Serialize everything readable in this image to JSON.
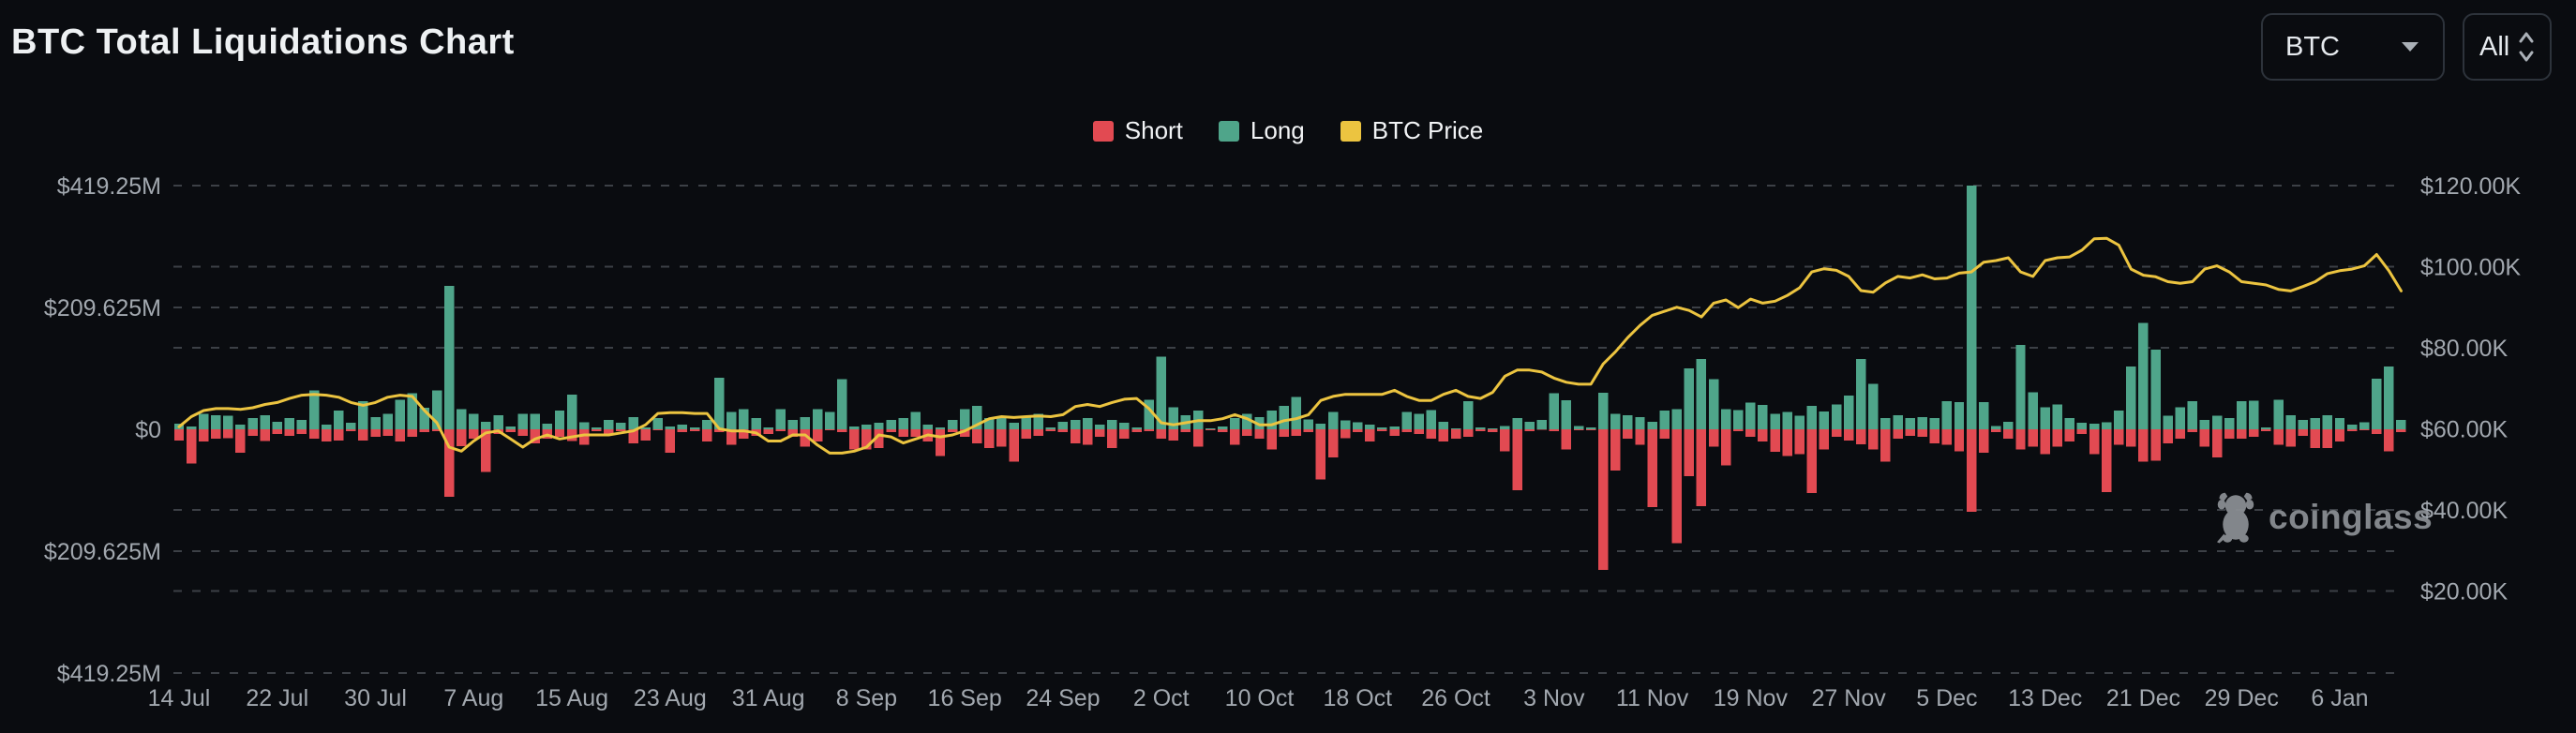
{
  "header": {
    "title": "BTC Total Liquidations Chart"
  },
  "controls": {
    "symbol_select": {
      "value": "BTC"
    },
    "range_select": {
      "value": "All"
    }
  },
  "legend": [
    {
      "label": "Short",
      "color": "#e24a52"
    },
    {
      "label": "Long",
      "color": "#4fa58a"
    },
    {
      "label": "BTC Price",
      "color": "#ecc440"
    }
  ],
  "watermark": {
    "text": "coinglass"
  },
  "colors": {
    "background": "#0a0c10",
    "short": "#e24a52",
    "long": "#4fa58a",
    "price": "#ecc440",
    "grid": "#3c4046",
    "axis_text": "#a2a8af",
    "title_text": "#eef1f3",
    "border": "#2d333b",
    "watermark": "#8d9196"
  },
  "chart_data": {
    "type": "bar+line",
    "title": "BTC Total Liquidations Chart",
    "grid": "dashed horizontal",
    "legend_position": "top-center",
    "start_date": "14 Jul",
    "x_tick_every_days": 8,
    "x_tick_labels": [
      "14 Jul",
      "22 Jul",
      "30 Jul",
      "7 Aug",
      "15 Aug",
      "23 Aug",
      "31 Aug",
      "8 Sep",
      "16 Sep",
      "24 Sep",
      "2 Oct",
      "10 Oct",
      "18 Oct",
      "26 Oct",
      "3 Nov",
      "11 Nov",
      "19 Nov",
      "27 Nov",
      "5 Dec",
      "13 Dec",
      "21 Dec",
      "29 Dec",
      "6 Jan"
    ],
    "left_axis": {
      "title": "Liquidations (USD)",
      "max_musd": 419.25,
      "tick_values_musd": [
        419.25,
        209.625,
        0,
        -209.625,
        -419.25
      ],
      "tick_labels": [
        "$419.25M",
        "$209.625M",
        "$0",
        "$209.625M",
        "$419.25M"
      ]
    },
    "right_axis": {
      "title": "BTC Price (USD)",
      "range_kusd": [
        0,
        120
      ],
      "tick_values_kusd": [
        120,
        100,
        80,
        60,
        40,
        20
      ],
      "tick_labels": [
        "$120.00K",
        "$100.00K",
        "$80.00K",
        "$60.00K",
        "$40.00K",
        "$20.00K"
      ]
    },
    "series": [
      {
        "name": "Long",
        "type": "bar",
        "direction": "up",
        "unit": "MUSD",
        "values_musd": [
          10,
          5,
          27,
          24,
          23,
          8,
          19,
          24,
          13,
          19,
          16,
          67,
          8,
          32,
          11,
          48,
          21,
          27,
          51,
          62,
          37,
          67,
          247,
          35,
          27,
          13,
          24,
          5,
          27,
          27,
          10,
          32,
          60,
          12,
          3,
          16,
          11,
          21,
          3,
          19,
          5,
          8,
          3,
          16,
          89,
          30,
          35,
          19,
          3,
          35,
          16,
          21,
          35,
          30,
          86,
          5,
          8,
          11,
          16,
          19,
          30,
          8,
          3,
          16,
          35,
          40,
          19,
          19,
          11,
          21,
          27,
          3,
          13,
          16,
          19,
          8,
          16,
          11,
          3,
          51,
          125,
          38,
          24,
          32,
          2,
          5,
          19,
          27,
          21,
          32,
          40,
          56,
          17,
          10,
          30,
          15,
          12,
          8,
          3,
          5,
          30,
          27,
          33,
          13,
          2,
          48,
          3,
          2,
          6,
          19,
          13,
          16,
          62,
          50,
          6,
          3,
          63,
          27,
          24,
          21,
          13,
          32,
          35,
          105,
          121,
          86,
          35,
          33,
          46,
          42,
          27,
          30,
          23,
          40,
          31,
          43,
          58,
          121,
          78,
          19,
          24,
          19,
          21,
          19,
          48,
          47,
          420,
          47,
          6,
          13,
          145,
          64,
          38,
          43,
          19,
          11,
          10,
          12,
          32,
          108,
          183,
          137,
          23,
          38,
          48,
          16,
          23,
          19,
          48,
          49,
          3,
          51,
          24,
          16,
          19,
          24,
          19,
          8,
          12,
          87,
          108,
          16
        ]
      },
      {
        "name": "Short",
        "type": "bar",
        "direction": "down",
        "unit": "MUSD",
        "values_musd": [
          19,
          59,
          21,
          16,
          15,
          40,
          11,
          20,
          8,
          11,
          8,
          16,
          21,
          19,
          3,
          19,
          13,
          11,
          21,
          13,
          5,
          3,
          116,
          29,
          16,
          73,
          8,
          5,
          11,
          24,
          16,
          13,
          20,
          27,
          3,
          8,
          3,
          24,
          19,
          2,
          40,
          5,
          3,
          21,
          5,
          27,
          16,
          11,
          8,
          3,
          13,
          30,
          21,
          2,
          5,
          35,
          35,
          32,
          5,
          13,
          13,
          21,
          46,
          5,
          13,
          24,
          32,
          30,
          56,
          16,
          11,
          3,
          5,
          24,
          27,
          13,
          32,
          16,
          5,
          3,
          16,
          19,
          5,
          30,
          2,
          5,
          27,
          11,
          16,
          35,
          13,
          11,
          5,
          86,
          48,
          15,
          5,
          21,
          3,
          11,
          5,
          8,
          16,
          21,
          16,
          13,
          3,
          5,
          38,
          105,
          3,
          1,
          3,
          35,
          2,
          2,
          242,
          71,
          16,
          27,
          134,
          16,
          196,
          81,
          132,
          30,
          62,
          3,
          13,
          21,
          39,
          46,
          43,
          110,
          35,
          13,
          19,
          26,
          35,
          56,
          16,
          11,
          13,
          24,
          27,
          38,
          142,
          40,
          5,
          16,
          35,
          30,
          43,
          30,
          21,
          8,
          43,
          108,
          27,
          30,
          56,
          54,
          24,
          16,
          5,
          30,
          48,
          16,
          16,
          13,
          3,
          27,
          30,
          11,
          32,
          32,
          21,
          3,
          2,
          8,
          38,
          5
        ]
      },
      {
        "name": "BTC Price",
        "type": "line",
        "axis": "right",
        "unit": "KUSD",
        "values_kusd": [
          60.5,
          63,
          64.5,
          65,
          65,
          64.8,
          65.2,
          66,
          66.5,
          67.5,
          68.3,
          68.5,
          68.3,
          67.8,
          66.5,
          65.8,
          66.5,
          67.8,
          68.3,
          68,
          64.5,
          61.5,
          55.5,
          54.5,
          57,
          59,
          59.5,
          57.5,
          55.5,
          57.5,
          58.5,
          57.5,
          58,
          58.5,
          58.5,
          58.5,
          59,
          59.5,
          61,
          63.8,
          64,
          64,
          63.8,
          63.8,
          60,
          59.5,
          59.5,
          59,
          57,
          57,
          58.5,
          58.5,
          56,
          54,
          54,
          54.5,
          55.5,
          58.5,
          58,
          56.5,
          57.5,
          58.5,
          58,
          58.5,
          59.5,
          61,
          62.5,
          63,
          62.8,
          63,
          63.2,
          63,
          63.5,
          65.5,
          66,
          65.5,
          66.5,
          67.3,
          67.5,
          65,
          61.5,
          61,
          61.5,
          62,
          62,
          62.5,
          63.5,
          62.5,
          61,
          61,
          62,
          62.5,
          63.5,
          67,
          68,
          68.5,
          68.5,
          68.5,
          68.5,
          69.5,
          68,
          67,
          67,
          68.5,
          69.5,
          68,
          67.5,
          69,
          73,
          74.5,
          74.5,
          74,
          72.5,
          71.5,
          71,
          71,
          76,
          79,
          82.5,
          85.5,
          88,
          89,
          90,
          89.2,
          87.6,
          91,
          91.8,
          89.9,
          92,
          91,
          91.5,
          92.9,
          94.8,
          98.7,
          99.5,
          99.1,
          97.6,
          94.1,
          93.7,
          96,
          97.6,
          97.2,
          98,
          97,
          97.2,
          98.4,
          98.7,
          101.1,
          101.5,
          102.2,
          98.7,
          97.6,
          101.5,
          102.2,
          102.4,
          104.1,
          106.9,
          107,
          105.3,
          99.4,
          97.9,
          97.5,
          96.3,
          95.9,
          96.3,
          99.4,
          100.2,
          98.7,
          96.3,
          95.9,
          95.5,
          94.4,
          94,
          95.1,
          96.3,
          98.3,
          99,
          99.4,
          100.2,
          103,
          99,
          94
        ]
      }
    ]
  }
}
